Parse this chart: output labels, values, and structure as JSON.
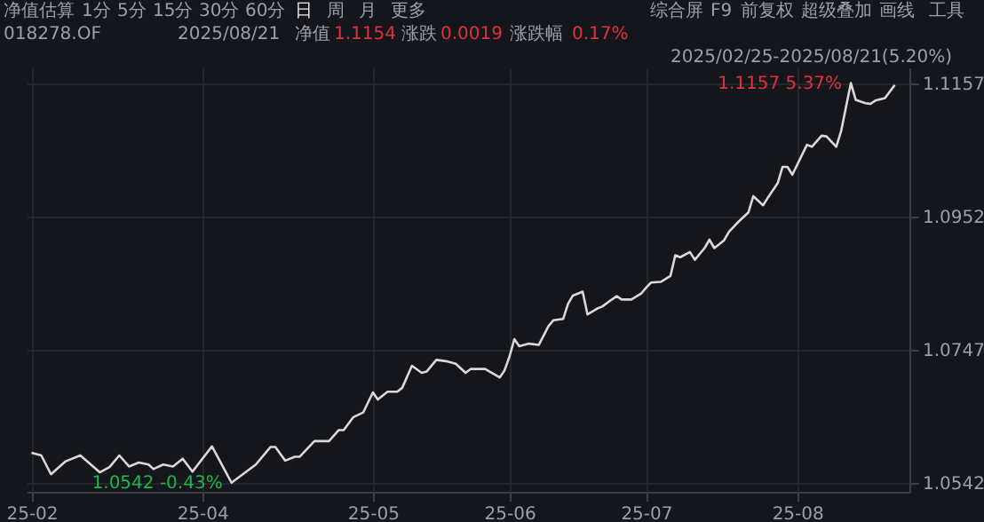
{
  "chart_data": {
    "type": "line",
    "x": [
      "2025-02-25",
      "2025-02-27",
      "2025-03-01",
      "2025-03-04",
      "2025-03-07",
      "2025-03-11",
      "2025-03-13",
      "2025-03-15",
      "2025-03-17",
      "2025-03-19",
      "2025-03-21",
      "2025-03-22",
      "2025-03-24",
      "2025-03-26",
      "2025-03-28",
      "2025-03-30",
      "2025-04-03",
      "2025-04-07",
      "2025-04-12",
      "2025-04-15",
      "2025-04-16",
      "2025-04-18",
      "2025-04-20",
      "2025-04-21",
      "2025-04-24",
      "2025-04-27",
      "2025-04-29",
      "2025-04-30",
      "2025-05-02",
      "2025-05-04",
      "2025-05-06",
      "2025-05-07",
      "2025-05-09",
      "2025-05-11",
      "2025-05-12",
      "2025-05-14",
      "2025-05-16",
      "2025-05-17",
      "2025-05-19",
      "2025-05-21",
      "2025-05-23",
      "2025-05-25",
      "2025-05-26",
      "2025-05-29",
      "2025-06-01",
      "2025-06-02",
      "2025-06-03",
      "2025-06-04",
      "2025-06-05",
      "2025-06-07",
      "2025-06-09",
      "2025-06-11",
      "2025-06-12",
      "2025-06-14",
      "2025-06-15",
      "2025-06-16",
      "2025-06-18",
      "2025-06-19",
      "2025-06-21",
      "2025-06-22",
      "2025-06-24",
      "2025-06-25",
      "2025-06-26",
      "2025-06-28",
      "2025-06-30",
      "2025-07-01",
      "2025-07-02",
      "2025-07-04",
      "2025-07-06",
      "2025-07-07",
      "2025-07-08",
      "2025-07-10",
      "2025-07-11",
      "2025-07-13",
      "2025-07-14",
      "2025-07-15",
      "2025-07-17",
      "2025-07-18",
      "2025-07-20",
      "2025-07-22",
      "2025-07-23",
      "2025-07-25",
      "2025-07-26",
      "2025-07-28",
      "2025-07-29",
      "2025-07-30",
      "2025-07-31",
      "2025-08-03",
      "2025-08-04",
      "2025-08-06",
      "2025-08-07",
      "2025-08-09",
      "2025-08-10",
      "2025-08-12",
      "2025-08-13",
      "2025-08-15",
      "2025-08-16",
      "2025-08-17",
      "2025-08-19",
      "2025-08-21"
    ],
    "series": [
      {
        "color": "#d9d9d9",
        "values": [
          1.0588,
          1.0584,
          1.0555,
          1.0575,
          1.0584,
          1.0558,
          1.0566,
          1.0584,
          1.0567,
          1.0573,
          1.057,
          1.0563,
          1.057,
          1.0567,
          1.0579,
          1.0559,
          1.0598,
          1.0542,
          1.057,
          1.0597,
          1.0597,
          1.0576,
          1.0582,
          1.0582,
          1.0606,
          1.0606,
          1.0623,
          1.0623,
          1.0643,
          1.065,
          1.0681,
          1.067,
          1.0682,
          1.0682,
          1.0688,
          1.0722,
          1.0711,
          1.0713,
          1.0731,
          1.0729,
          1.0725,
          1.0711,
          1.0717,
          1.0717,
          1.0704,
          1.0715,
          1.0736,
          1.0763,
          1.0752,
          1.0756,
          1.0754,
          1.0783,
          1.0792,
          1.0794,
          1.0817,
          1.083,
          1.0836,
          1.0801,
          1.081,
          1.0813,
          1.0824,
          1.0829,
          1.0824,
          1.0824,
          1.0833,
          1.0842,
          1.085,
          1.0851,
          1.086,
          1.0892,
          1.0889,
          1.0897,
          1.0885,
          1.0903,
          1.0916,
          1.0903,
          1.0915,
          1.0928,
          1.0944,
          1.0958,
          1.0983,
          1.0969,
          1.0981,
          1.1003,
          1.1028,
          1.1028,
          1.1016,
          1.1062,
          1.1059,
          1.1076,
          1.1075,
          1.1059,
          1.1083,
          1.1157,
          1.1131,
          1.1126,
          1.1125,
          1.113,
          1.1134,
          1.1154
        ]
      }
    ],
    "xlim": [
      "2025-02-24",
      "2025-08-24"
    ],
    "xticks": [
      {
        "value": "2025-02-25",
        "label": "25-02"
      },
      {
        "value": "2025-04-01",
        "label": "25-04"
      },
      {
        "value": "2025-05-06",
        "label": "25-05"
      },
      {
        "value": "2025-06-03",
        "label": "25-06"
      },
      {
        "value": "2025-07-01",
        "label": "25-07"
      },
      {
        "value": "2025-08-01",
        "label": "25-08"
      }
    ],
    "ylim": [
      1.0528,
      1.1181
    ],
    "yticks": [
      1.0542,
      1.0747,
      1.0952,
      1.1157
    ],
    "grid": true,
    "annotations": [
      {
        "text": "1.1157 5.37%",
        "x": "2025-08-12",
        "y": 1.1157
      },
      {
        "text": "1.0542 -0.43%",
        "x": "2025-04-07",
        "y": 1.0542
      },
      "净值估算",
      "1分",
      "5分",
      "15分",
      "30分",
      "60分",
      "日",
      "周",
      "月",
      "更多",
      "综合屏",
      "F9",
      "前复权",
      "超级叠加",
      "画线",
      "工具",
      "018278.OF",
      "2025/08/21",
      "净值",
      "1.1154",
      "涨跌",
      "0.0019",
      "涨跌幅",
      "0.17%",
      "2025/02/25-2025/08/21(5.20%)"
    ]
  }
}
